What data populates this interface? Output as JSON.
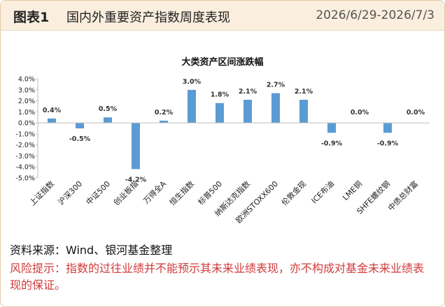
{
  "header": {
    "figure_label": "图表1",
    "title": "国内外重要资产指数周度表现",
    "date_range": "2026/6/29-2026/7/3"
  },
  "chart_data": {
    "type": "bar",
    "title": "大类资产区间涨跌幅",
    "categories": [
      "上证指数",
      "沪深300",
      "中证500",
      "创业板指",
      "万得全A",
      "恒生指数",
      "标普500",
      "纳斯达克指数",
      "欧洲STOXX600",
      "伦敦金现",
      "ICE布油",
      "LME铜",
      "SHFE螺纹钢",
      "中债总财富"
    ],
    "values": [
      0.4,
      -0.5,
      0.5,
      -4.2,
      0.2,
      3.0,
      1.8,
      2.1,
      2.7,
      2.1,
      -0.9,
      0.0,
      -0.9,
      0.0
    ],
    "data_labels": [
      "0.4%",
      "-0.5%",
      "0.5%",
      "-4.2%",
      "0.2%",
      "3.0%",
      "1.8%",
      "2.1%",
      "2.7%",
      "2.1%",
      "-0.9%",
      "0.0%",
      "-0.9%",
      "0.0%"
    ],
    "ylim": [
      -5.0,
      4.0
    ],
    "yticks": [
      4.0,
      3.0,
      2.0,
      1.0,
      0.0,
      -1.0,
      -2.0,
      -3.0,
      -4.0,
      -5.0
    ],
    "ytick_labels": [
      "4.0%",
      "3.0%",
      "2.0%",
      "1.0%",
      "0.0%",
      "-1.0%",
      "-2.0%",
      "-3.0%",
      "-4.0%",
      "-5.0%"
    ],
    "bar_color": "#5b9bd5",
    "xlabel": "",
    "ylabel": "",
    "grid": false,
    "legend": false
  },
  "footer": {
    "source": "资料来源：Wind、银河基金整理",
    "risk_notice": "风险提示：指数的过往业绩并不能预示其未来业绩表现，亦不构成对基金未来业绩表现的保证。"
  }
}
